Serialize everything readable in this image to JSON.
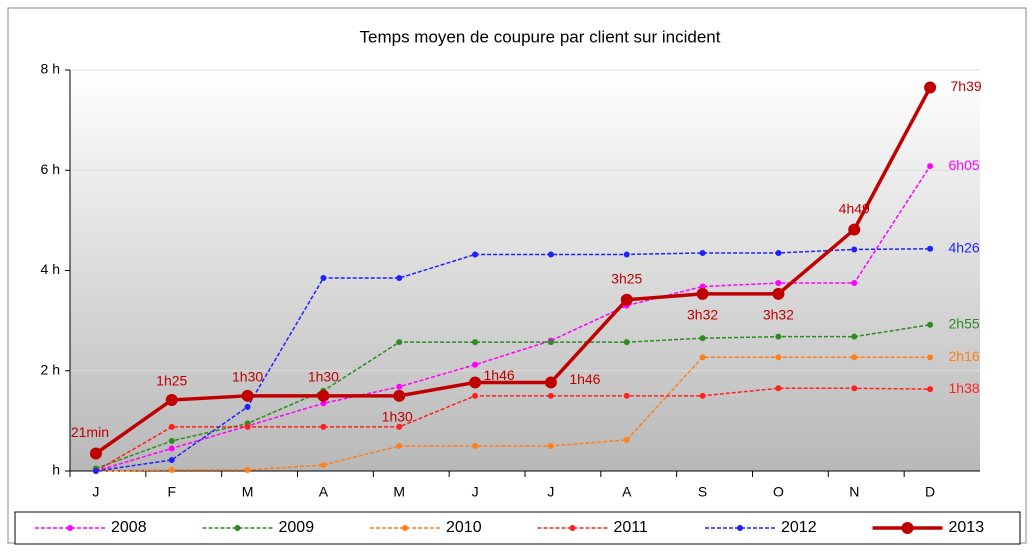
{
  "chart_data": {
    "type": "line",
    "title": "Temps moyen de coupure par client sur incident",
    "categories": [
      "J",
      "F",
      "M",
      "A",
      "M",
      "J",
      "J",
      "A",
      "S",
      "O",
      "N",
      "D"
    ],
    "ylim": [
      0,
      8
    ],
    "yticks": [
      {
        "value": 0,
        "label": "h"
      },
      {
        "value": 2,
        "label": "2 h"
      },
      {
        "value": 4,
        "label": "4 h"
      },
      {
        "value": 6,
        "label": "6 h"
      },
      {
        "value": 8,
        "label": "8 h"
      }
    ],
    "grid": true,
    "legend": "bottom",
    "series": [
      {
        "name": "2008",
        "color": "#ff00ff",
        "dashed": true,
        "values": [
          0,
          0.45,
          0.9,
          1.35,
          1.68,
          2.12,
          2.6,
          3.3,
          3.68,
          3.75,
          3.75,
          6.083
        ],
        "value_labels": [
          null,
          null,
          null,
          null,
          null,
          null,
          null,
          null,
          null,
          null,
          null,
          "6h05"
        ]
      },
      {
        "name": "2009",
        "color": "#2e8b22",
        "dashed": true,
        "values": [
          0.05,
          0.6,
          0.95,
          1.6,
          2.57,
          2.57,
          2.57,
          2.57,
          2.65,
          2.68,
          2.68,
          2.917
        ],
        "value_labels": [
          null,
          null,
          null,
          null,
          null,
          null,
          null,
          null,
          null,
          null,
          null,
          "2h55"
        ]
      },
      {
        "name": "2010",
        "color": "#ff7f1a",
        "dashed": true,
        "values": [
          0,
          0.02,
          0.02,
          0.12,
          0.5,
          0.5,
          0.5,
          0.62,
          2.27,
          2.27,
          2.27,
          2.267
        ],
        "value_labels": [
          null,
          null,
          null,
          null,
          null,
          null,
          null,
          null,
          null,
          null,
          null,
          "2h16"
        ]
      },
      {
        "name": "2011",
        "color": "#ff2020",
        "dashed": true,
        "values": [
          0,
          0.88,
          0.88,
          0.88,
          0.88,
          1.5,
          1.5,
          1.5,
          1.5,
          1.65,
          1.65,
          1.633
        ],
        "value_labels": [
          null,
          null,
          null,
          null,
          null,
          null,
          null,
          null,
          null,
          null,
          null,
          "1h38"
        ]
      },
      {
        "name": "2012",
        "color": "#2020ff",
        "dashed": true,
        "values": [
          0,
          0.22,
          1.28,
          3.85,
          3.85,
          4.32,
          4.32,
          4.32,
          4.35,
          4.35,
          4.42,
          4.433
        ],
        "value_labels": [
          null,
          null,
          null,
          null,
          null,
          null,
          null,
          null,
          null,
          null,
          null,
          "4h26"
        ]
      },
      {
        "name": "2013",
        "color": "#c00000",
        "dashed": false,
        "values": [
          0.35,
          1.4167,
          1.5,
          1.5,
          1.5,
          1.7667,
          1.7667,
          3.4167,
          3.5333,
          3.5333,
          4.8167,
          7.65
        ],
        "value_labels": [
          "21min",
          "1h25",
          "1h30",
          "1h30",
          "1h30",
          "1h46",
          "1h46",
          "3h25",
          "3h32",
          "3h32",
          "4h49",
          "7h39"
        ]
      }
    ]
  }
}
